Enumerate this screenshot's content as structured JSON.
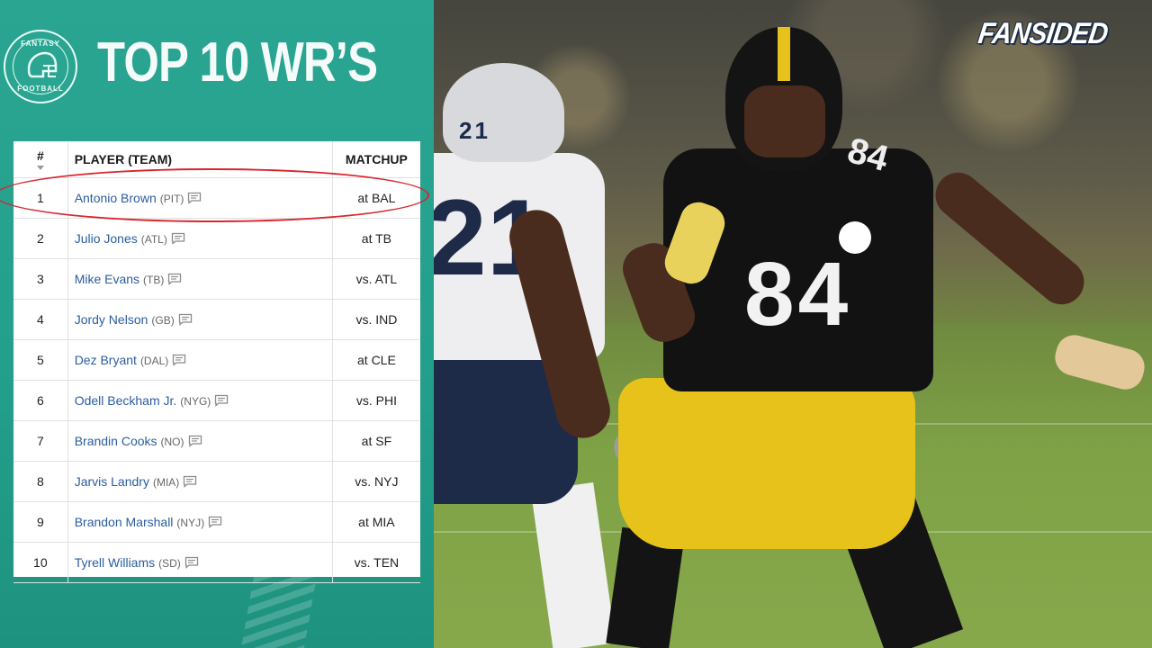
{
  "header": {
    "title": "TOP 10 WR’S",
    "logo_top_text": "FANTASY",
    "logo_bottom_text": "FOOTBALL"
  },
  "brand": {
    "name": "FANSIDED"
  },
  "table": {
    "headers": {
      "num": "#",
      "player": "PLAYER (TEAM)",
      "matchup": "MATCHUP"
    },
    "rows": [
      {
        "rank": "1",
        "name": "Antonio Brown",
        "team": "(PIT)",
        "matchup": "at BAL"
      },
      {
        "rank": "2",
        "name": "Julio Jones",
        "team": "(ATL)",
        "matchup": "at TB"
      },
      {
        "rank": "3",
        "name": "Mike Evans",
        "team": "(TB)",
        "matchup": "vs. ATL"
      },
      {
        "rank": "4",
        "name": "Jordy Nelson",
        "team": "(GB)",
        "matchup": "vs. IND"
      },
      {
        "rank": "5",
        "name": "Dez Bryant",
        "team": "(DAL)",
        "matchup": "at CLE"
      },
      {
        "rank": "6",
        "name": "Odell Beckham Jr.",
        "team": "(NYG)",
        "matchup": "vs. PHI"
      },
      {
        "rank": "7",
        "name": "Brandin Cooks",
        "team": "(NO)",
        "matchup": "at SF"
      },
      {
        "rank": "8",
        "name": "Jarvis Landry",
        "team": "(MIA)",
        "matchup": "vs. NYJ"
      },
      {
        "rank": "9",
        "name": "Brandon Marshall",
        "team": "(NYJ)",
        "matchup": "at MIA"
      },
      {
        "rank": "10",
        "name": "Tyrell Williams",
        "team": "(SD)",
        "matchup": "vs. TEN"
      }
    ]
  },
  "photo": {
    "player_right_number": "84",
    "player_left_number": "21"
  },
  "colors": {
    "panel_teal": "#23a08c",
    "link_blue": "#2a5d9f",
    "highlight_red": "#d8262d",
    "steelers_gold": "#e6c21a"
  },
  "icons": {
    "note": "comment-icon",
    "sort": "sort-arrow-icon",
    "helmet": "helmet-icon"
  }
}
